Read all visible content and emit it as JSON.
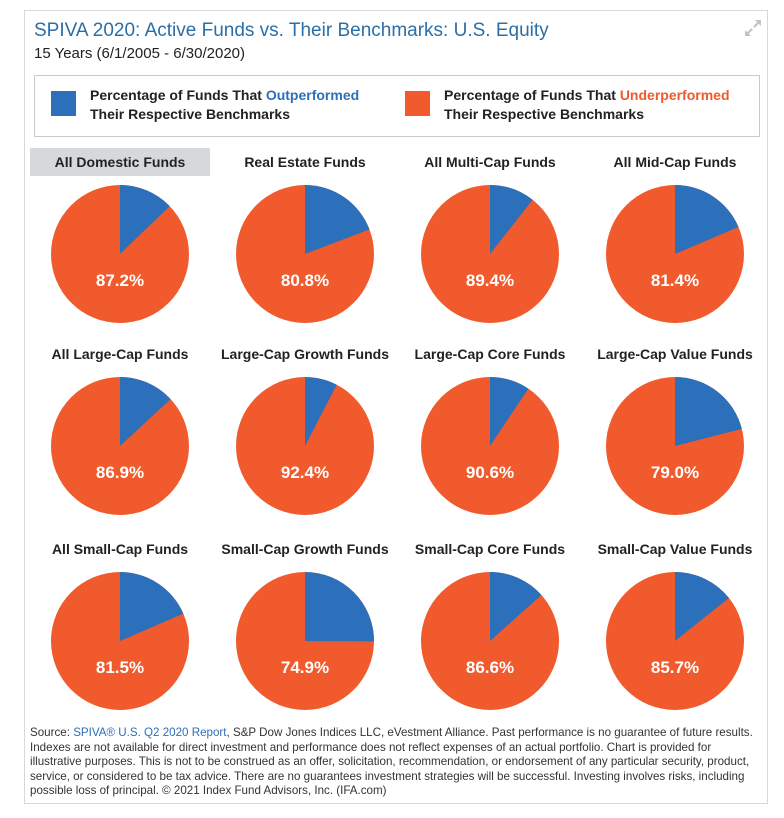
{
  "header": {
    "title": "SPIVA 2020: Active Funds vs. Their Benchmarks: U.S. Equity",
    "subtitle": "15 Years (6/1/2005 - 6/30/2020)"
  },
  "legend": {
    "outperformed": {
      "prefix": "Percentage of Funds That ",
      "highlight": "Outperformed",
      "line2": "Their Respective Benchmarks"
    },
    "underperformed": {
      "prefix": "Percentage of Funds That ",
      "highlight": "Underperformed",
      "line2": "Their Respective Benchmarks"
    }
  },
  "colors": {
    "outperformed": "#2c6fba",
    "underperformed": "#f05a2c",
    "title": "#2a6fa8"
  },
  "chart_data": {
    "type": "pie",
    "series_names": [
      "Outperformed",
      "Underperformed"
    ],
    "charts": [
      {
        "label": "All Domestic Funds",
        "underperformed": 87.2,
        "underperformed_label": "87.2%"
      },
      {
        "label": "Real Estate Funds",
        "underperformed": 80.8,
        "underperformed_label": "80.8%"
      },
      {
        "label": "All Multi-Cap Funds",
        "underperformed": 89.4,
        "underperformed_label": "89.4%"
      },
      {
        "label": "All Mid-Cap Funds",
        "underperformed": 81.4,
        "underperformed_label": "81.4%"
      },
      {
        "label": "All Large-Cap Funds",
        "underperformed": 86.9,
        "underperformed_label": "86.9%"
      },
      {
        "label": "Large-Cap Growth Funds",
        "underperformed": 92.4,
        "underperformed_label": "92.4%"
      },
      {
        "label": "Large-Cap Core Funds",
        "underperformed": 90.6,
        "underperformed_label": "90.6%"
      },
      {
        "label": "Large-Cap Value Funds",
        "underperformed": 79.0,
        "underperformed_label": "79.0%"
      },
      {
        "label": "All Small-Cap Funds",
        "underperformed": 81.5,
        "underperformed_label": "81.5%"
      },
      {
        "label": "Small-Cap Growth Funds",
        "underperformed": 74.9,
        "underperformed_label": "74.9%"
      },
      {
        "label": "Small-Cap Core Funds",
        "underperformed": 86.6,
        "underperformed_label": "86.6%"
      },
      {
        "label": "Small-Cap Value Funds",
        "underperformed": 85.7,
        "underperformed_label": "85.7%"
      }
    ]
  },
  "source": {
    "prefix": "Source: ",
    "link_text": "SPIVA® U.S. Q2 2020 Report",
    "text": ", S&P Dow Jones Indices LLC, eVestment Alliance. Past performance is no guarantee of future results. Indexes are not available for direct investment and performance does not reflect expenses of an actual portfolio. Chart is provided for illustrative purposes. This is not to be construed as an offer, solicitation, recommendation, or endorsement of any particular security, product, service, or considered to be tax advice. There are no guarantees investment strategies will be successful. Investing involves risks, including possible loss of principal. © 2021 Index Fund Advisors, Inc. (IFA.com)"
  }
}
